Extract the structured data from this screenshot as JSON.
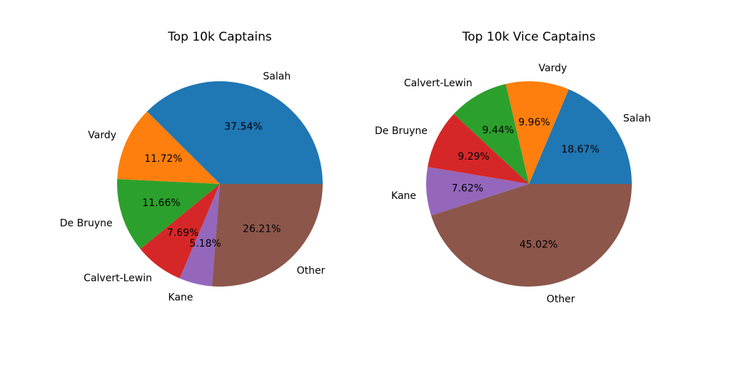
{
  "chart_data": [
    {
      "type": "pie",
      "title": "Top 10k Captains",
      "start_angle_deg": 0,
      "direction": "counterclockwise",
      "categories": [
        "Salah",
        "Vardy",
        "De Bruyne",
        "Calvert-Lewin",
        "Kane",
        "Other"
      ],
      "values": [
        37.54,
        11.72,
        11.66,
        7.69,
        5.18,
        26.21
      ],
      "value_labels": [
        "37.54%",
        "11.72%",
        "11.66%",
        "7.69%",
        "5.18%",
        "26.21%"
      ],
      "colors": [
        "#1f77b4",
        "#ff7f0e",
        "#2ca02c",
        "#d62728",
        "#9467bd",
        "#8c564b"
      ]
    },
    {
      "type": "pie",
      "title": "Top 10k Vice Captains",
      "start_angle_deg": 0,
      "direction": "counterclockwise",
      "categories": [
        "Salah",
        "Vardy",
        "Calvert-Lewin",
        "De Bruyne",
        "Kane",
        "Other"
      ],
      "values": [
        18.67,
        9.96,
        9.44,
        9.29,
        7.62,
        45.02
      ],
      "value_labels": [
        "18.67%",
        "9.96%",
        "9.44%",
        "9.29%",
        "7.62%",
        "45.02%"
      ],
      "colors": [
        "#1f77b4",
        "#ff7f0e",
        "#2ca02c",
        "#d62728",
        "#9467bd",
        "#8c564b"
      ]
    }
  ]
}
